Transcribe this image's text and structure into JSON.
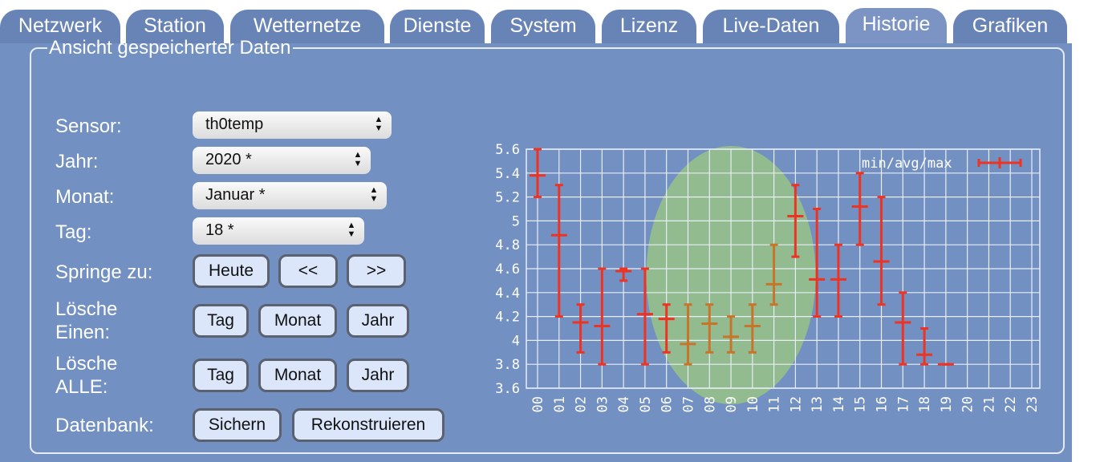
{
  "tabs": [
    {
      "label": "Netzwerk",
      "active": false
    },
    {
      "label": "Station",
      "active": false
    },
    {
      "label": "Wetternetze",
      "active": false
    },
    {
      "label": "Dienste",
      "active": false
    },
    {
      "label": "System",
      "active": false
    },
    {
      "label": "Lizenz",
      "active": false
    },
    {
      "label": "Live-Daten",
      "active": false
    },
    {
      "label": "Historie",
      "active": true
    },
    {
      "label": "Grafiken",
      "active": false
    }
  ],
  "panel": {
    "legend": "Ansicht gespeicherter Daten",
    "sensor": {
      "label": "Sensor:",
      "value": "th0temp"
    },
    "jahr": {
      "label": "Jahr:",
      "value": "2020 *"
    },
    "monat": {
      "label": "Monat:",
      "value": "Januar *"
    },
    "tag": {
      "label": "Tag:",
      "value": "18 *"
    },
    "springe": {
      "label": "Springe zu:",
      "today": "Heute",
      "prev": "<<",
      "next": ">>"
    },
    "loesche_einen": {
      "label_line1": "Lösche",
      "label_line2": "Einen:",
      "tag": "Tag",
      "monat": "Monat",
      "jahr": "Jahr"
    },
    "loesche_alle": {
      "label_line1": "Lösche",
      "label_line2": "ALLE:",
      "tag": "Tag",
      "monat": "Monat",
      "jahr": "Jahr"
    },
    "datenbank": {
      "label": "Datenbank:",
      "sichern": "Sichern",
      "rekonstruieren": "Rekonstruieren"
    }
  },
  "colors": {
    "series": "#ee3322",
    "highlighted_series": "#c8752a",
    "highlight_ellipse": "#9cc97f",
    "grid": "#e8edf6"
  },
  "chart_data": {
    "type": "errorbar",
    "legend": "min/avg/max",
    "ylim": [
      3.6,
      5.6
    ],
    "yticks": [
      "3.6",
      "3.8",
      "4",
      "4.2",
      "4.4",
      "4.6",
      "4.8",
      "5",
      "5.2",
      "5.4",
      "5.6"
    ],
    "categories": [
      "00",
      "01",
      "02",
      "03",
      "04",
      "05",
      "06",
      "07",
      "08",
      "09",
      "10",
      "11",
      "12",
      "13",
      "14",
      "15",
      "16",
      "17",
      "18",
      "19",
      "20",
      "21",
      "22",
      "23"
    ],
    "min": [
      5.2,
      4.2,
      3.9,
      3.8,
      4.5,
      3.8,
      3.9,
      3.8,
      3.9,
      3.9,
      3.9,
      4.3,
      4.7,
      4.2,
      4.2,
      4.8,
      4.3,
      3.8,
      3.8,
      3.8,
      null,
      null,
      null,
      null
    ],
    "avg": [
      5.38,
      4.88,
      4.15,
      4.12,
      4.58,
      4.22,
      4.18,
      3.97,
      4.14,
      4.03,
      4.12,
      4.47,
      5.04,
      4.51,
      4.51,
      5.12,
      4.66,
      4.15,
      3.88,
      3.8,
      null,
      null,
      null,
      null
    ],
    "max": [
      5.6,
      5.3,
      4.3,
      4.6,
      4.6,
      4.6,
      4.3,
      4.3,
      4.3,
      4.2,
      4.3,
      4.8,
      5.3,
      5.1,
      4.8,
      5.4,
      5.2,
      4.4,
      4.1,
      3.8,
      null,
      null,
      null,
      null
    ],
    "highlighted": [
      "07",
      "08",
      "09",
      "10",
      "11"
    ]
  }
}
